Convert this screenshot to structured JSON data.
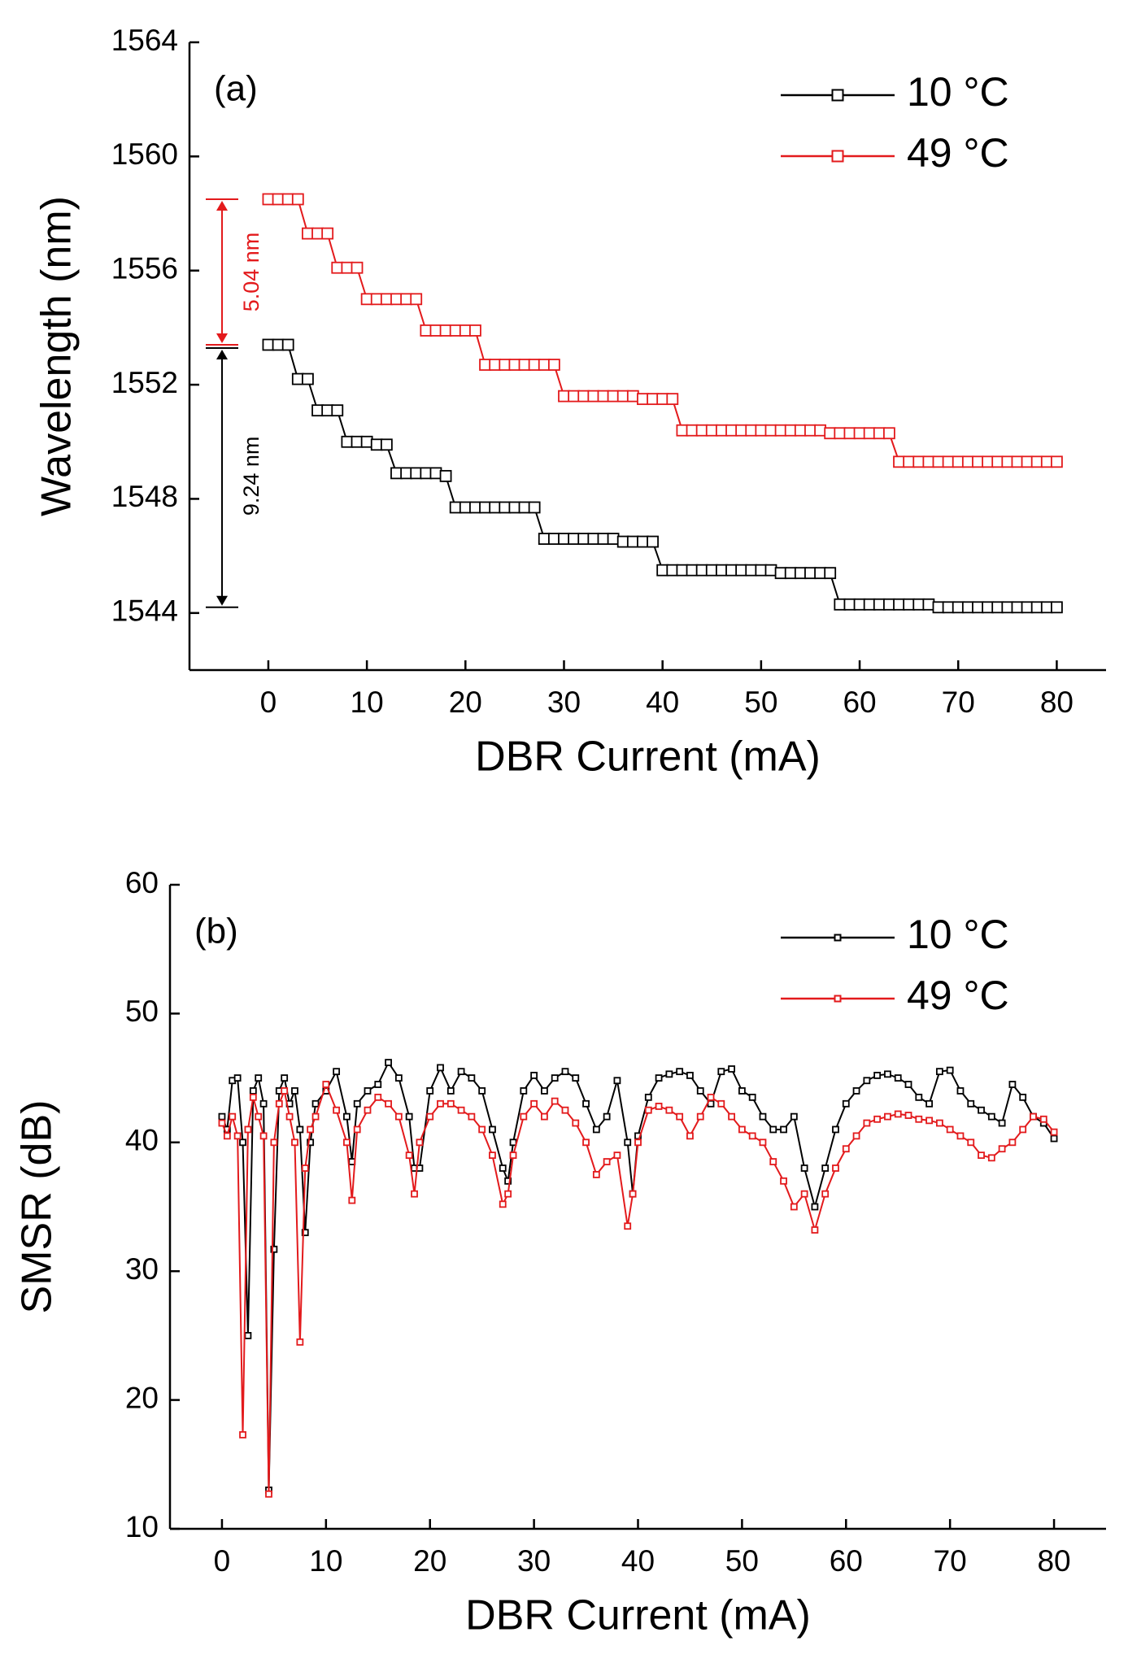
{
  "chart_data": [
    {
      "type": "line",
      "panel_label": "(a)",
      "x_label": "DBR Current (mA)",
      "y_label": "Wavelength (nm)",
      "xlim": [
        -8,
        85
      ],
      "ylim": [
        1542,
        1564
      ],
      "xticks": [
        0,
        10,
        20,
        30,
        40,
        50,
        60,
        70,
        80
      ],
      "yticks": [
        1544,
        1548,
        1552,
        1556,
        1560,
        1564
      ],
      "annotations": [
        {
          "text": "5.04 nm",
          "color": "#e31a1c"
        },
        {
          "text": "9.24 nm",
          "color": "#000000"
        }
      ],
      "x": [
        0,
        1,
        2,
        3,
        4,
        5,
        6,
        7,
        8,
        9,
        10,
        11,
        12,
        13,
        14,
        15,
        16,
        17,
        18,
        19,
        20,
        21,
        22,
        23,
        24,
        25,
        26,
        27,
        28,
        29,
        30,
        31,
        32,
        33,
        34,
        35,
        36,
        37,
        38,
        39,
        40,
        41,
        42,
        43,
        44,
        45,
        46,
        47,
        48,
        49,
        50,
        51,
        52,
        53,
        54,
        55,
        56,
        57,
        58,
        59,
        60,
        61,
        62,
        63,
        64,
        65,
        66,
        67,
        68,
        69,
        70,
        71,
        72,
        73,
        74,
        75,
        76,
        77,
        78,
        79,
        80
      ],
      "series": [
        {
          "name": "10 °C",
          "color": "#000000",
          "values": [
            1553.4,
            1553.4,
            1553.4,
            1552.2,
            1552.2,
            1551.1,
            1551.1,
            1551.1,
            1550.0,
            1550.0,
            1550.0,
            1549.9,
            1549.9,
            1548.9,
            1548.9,
            1548.9,
            1548.9,
            1548.9,
            1548.8,
            1547.7,
            1547.7,
            1547.7,
            1547.7,
            1547.7,
            1547.7,
            1547.7,
            1547.7,
            1547.7,
            1546.6,
            1546.6,
            1546.6,
            1546.6,
            1546.6,
            1546.6,
            1546.6,
            1546.6,
            1546.5,
            1546.5,
            1546.5,
            1546.5,
            1545.5,
            1545.5,
            1545.5,
            1545.5,
            1545.5,
            1545.5,
            1545.5,
            1545.5,
            1545.5,
            1545.5,
            1545.5,
            1545.5,
            1545.4,
            1545.4,
            1545.4,
            1545.4,
            1545.4,
            1545.4,
            1544.3,
            1544.3,
            1544.3,
            1544.3,
            1544.3,
            1544.3,
            1544.3,
            1544.3,
            1544.3,
            1544.3,
            1544.2,
            1544.2,
            1544.2,
            1544.2,
            1544.2,
            1544.2,
            1544.2,
            1544.2,
            1544.2,
            1544.2,
            1544.2,
            1544.2,
            1544.2
          ]
        },
        {
          "name": "49 °C",
          "color": "#e31a1c",
          "values": [
            1558.5,
            1558.5,
            1558.5,
            1558.5,
            1557.3,
            1557.3,
            1557.3,
            1556.1,
            1556.1,
            1556.1,
            1555.0,
            1555.0,
            1555.0,
            1555.0,
            1555.0,
            1555.0,
            1553.9,
            1553.9,
            1553.9,
            1553.9,
            1553.9,
            1553.9,
            1552.7,
            1552.7,
            1552.7,
            1552.7,
            1552.7,
            1552.7,
            1552.7,
            1552.7,
            1551.6,
            1551.6,
            1551.6,
            1551.6,
            1551.6,
            1551.6,
            1551.6,
            1551.6,
            1551.5,
            1551.5,
            1551.5,
            1551.5,
            1550.4,
            1550.4,
            1550.4,
            1550.4,
            1550.4,
            1550.4,
            1550.4,
            1550.4,
            1550.4,
            1550.4,
            1550.4,
            1550.4,
            1550.4,
            1550.4,
            1550.4,
            1550.3,
            1550.3,
            1550.3,
            1550.3,
            1550.3,
            1550.3,
            1550.3,
            1549.3,
            1549.3,
            1549.3,
            1549.3,
            1549.3,
            1549.3,
            1549.3,
            1549.3,
            1549.3,
            1549.3,
            1549.3,
            1549.3,
            1549.3,
            1549.3,
            1549.3,
            1549.3,
            1549.3
          ]
        }
      ]
    },
    {
      "type": "line",
      "panel_label": "(b)",
      "x_label": "DBR Current (mA)",
      "y_label": "SMSR (dB)",
      "xlim": [
        -5,
        85
      ],
      "ylim": [
        10,
        60
      ],
      "xticks": [
        0,
        10,
        20,
        30,
        40,
        50,
        60,
        70,
        80
      ],
      "yticks": [
        10,
        20,
        30,
        40,
        50,
        60
      ],
      "x": [
        0,
        0.5,
        1,
        1.5,
        2,
        2.5,
        3,
        3.5,
        4,
        4.5,
        5,
        5.5,
        6,
        6.5,
        7,
        7.5,
        8,
        8.5,
        9,
        10,
        11,
        12,
        12.5,
        13,
        14,
        15,
        16,
        17,
        18,
        18.5,
        19,
        20,
        21,
        22,
        23,
        24,
        25,
        26,
        27,
        27.5,
        28,
        29,
        30,
        31,
        32,
        33,
        34,
        35,
        36,
        37,
        38,
        39,
        39.5,
        40,
        41,
        42,
        43,
        44,
        45,
        46,
        47,
        48,
        49,
        50,
        51,
        52,
        53,
        54,
        55,
        56,
        57,
        58,
        59,
        60,
        61,
        62,
        63,
        64,
        65,
        66,
        67,
        68,
        69,
        70,
        71,
        72,
        73,
        74,
        75,
        76,
        77,
        78,
        79,
        80
      ],
      "series": [
        {
          "name": "10 °C",
          "color": "#000000",
          "values": [
            42,
            41,
            44.8,
            45,
            40,
            25,
            44,
            45,
            43,
            13,
            31.7,
            44,
            45,
            43,
            44,
            41,
            33,
            40,
            43,
            44,
            45.5,
            42,
            38.5,
            43,
            44,
            44.5,
            46.2,
            45,
            42,
            38,
            38,
            44,
            45.8,
            44,
            45.5,
            45,
            44,
            41,
            38,
            37,
            40,
            44,
            45.2,
            44,
            45,
            45.5,
            45,
            43,
            41,
            42,
            44.8,
            40,
            36,
            40.5,
            43.5,
            45,
            45.3,
            45.5,
            45.2,
            44,
            43,
            45.5,
            45.7,
            44,
            43.5,
            42,
            41,
            41,
            42,
            38,
            35,
            38,
            41,
            43,
            44,
            44.8,
            45.2,
            45.3,
            45,
            44.5,
            43.5,
            43,
            45.5,
            45.6,
            44,
            43,
            42.5,
            42,
            41.5,
            44.5,
            43.5,
            42,
            41.5,
            40.3
          ]
        },
        {
          "name": "49 °C",
          "color": "#e31a1c",
          "values": [
            41.5,
            40.5,
            42,
            40.5,
            17.3,
            41,
            43.5,
            42,
            40.5,
            12.7,
            40,
            43,
            44,
            42,
            40,
            24.5,
            38,
            41,
            42,
            44.5,
            42.5,
            40,
            35.5,
            41,
            42.5,
            43.5,
            43,
            42,
            39,
            36,
            40,
            42,
            43,
            43,
            42.5,
            42,
            41,
            39,
            35.2,
            36,
            39,
            42,
            43,
            42,
            43.2,
            42.5,
            41.5,
            40,
            37.5,
            38.5,
            39,
            33.5,
            36,
            40,
            42.5,
            42.8,
            42.5,
            42,
            40.5,
            42,
            43.5,
            43,
            42,
            41,
            40.5,
            40,
            38.5,
            37,
            35,
            36,
            33.2,
            36,
            38,
            39.5,
            40.5,
            41.5,
            41.8,
            42,
            42.2,
            42.1,
            41.8,
            41.7,
            41.5,
            41,
            40.5,
            40,
            39,
            38.8,
            39.5,
            40,
            41,
            42,
            41.8,
            40.8
          ]
        }
      ]
    }
  ]
}
